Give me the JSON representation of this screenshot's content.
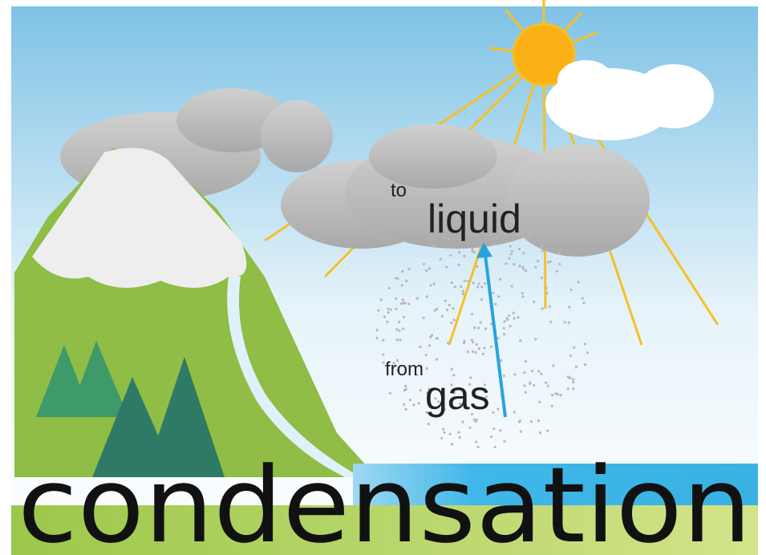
{
  "from": {
    "small": "from",
    "large": "gas"
  },
  "to": {
    "small": "to",
    "large": "liquid"
  },
  "title": "condensation"
}
